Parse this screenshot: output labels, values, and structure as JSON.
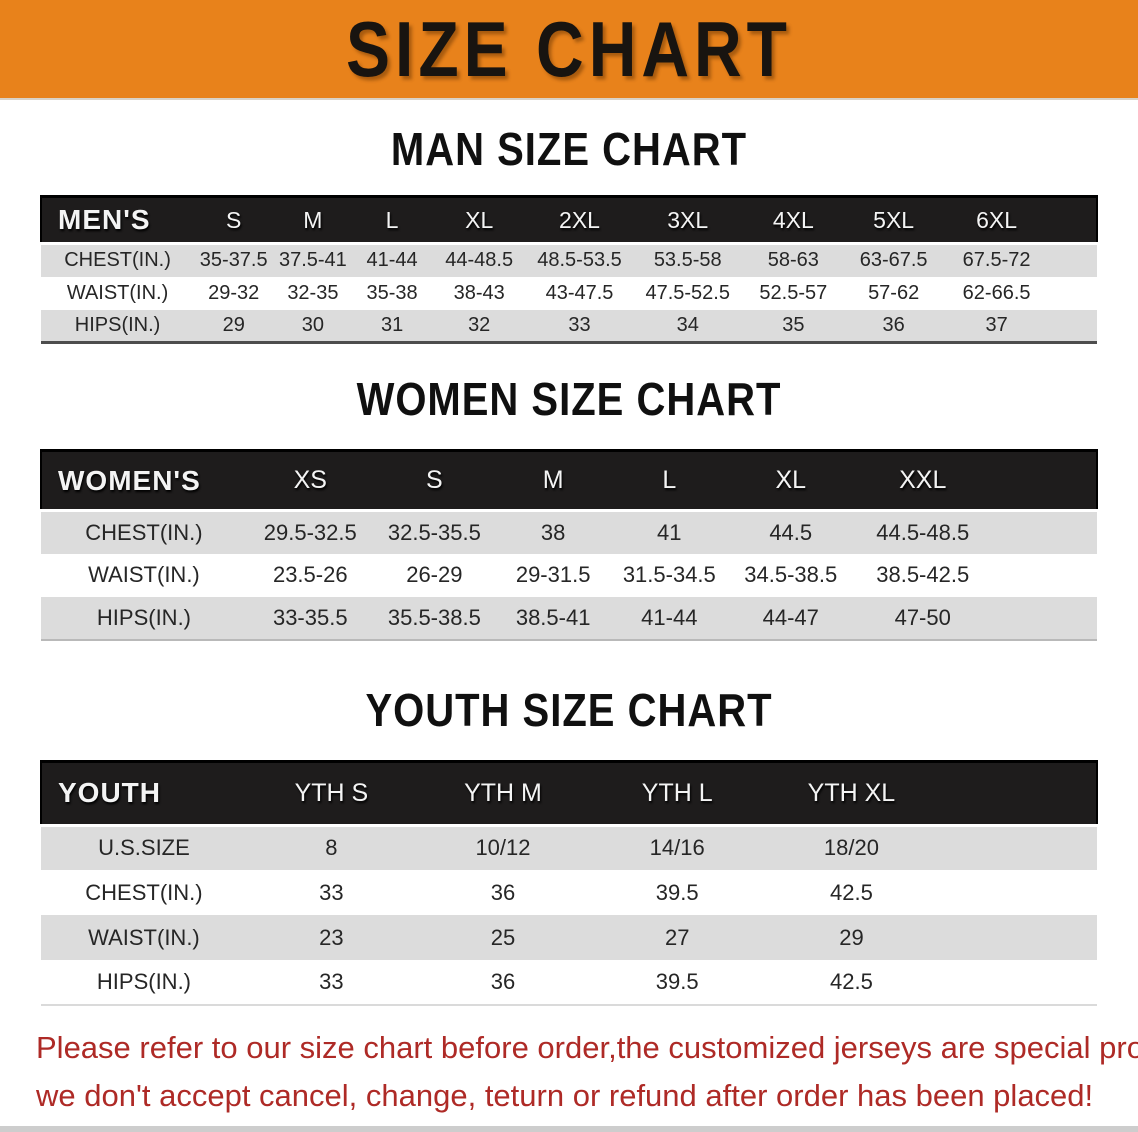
{
  "theme": {
    "orange": "#E8821B",
    "header-bg": "#1E1C1C",
    "stripe": "#DCDCDC",
    "red": "#AE2A26"
  },
  "banner": {
    "title": "SIZE CHART"
  },
  "sections": [
    {
      "heading": "MAN SIZE CHART",
      "table": {
        "header_label": "MEN'S",
        "columns": [
          "S",
          "M",
          "L",
          "XL",
          "2XL",
          "3XL",
          "4XL",
          "5XL",
          "6XL"
        ],
        "rows": [
          {
            "label": "CHEST(IN.)",
            "values": [
              "35-37.5",
              "37.5-41",
              "41-44",
              "44-48.5",
              "48.5-53.5",
              "53.5-58",
              "58-63",
              "63-67.5",
              "67.5-72"
            ]
          },
          {
            "label": "WAIST(IN.)",
            "values": [
              "29-32",
              "32-35",
              "35-38",
              "38-43",
              "43-47.5",
              "47.5-52.5",
              "52.5-57",
              "57-62",
              "62-66.5"
            ]
          },
          {
            "label": "HIPS(IN.)",
            "values": [
              "29",
              "30",
              "31",
              "32",
              "33",
              "34",
              "35",
              "36",
              "37"
            ]
          }
        ]
      }
    },
    {
      "heading": "WOMEN SIZE CHART",
      "table": {
        "header_label": "WOMEN'S",
        "columns": [
          "XS",
          "S",
          "M",
          "L",
          "XL",
          "XXL"
        ],
        "rows": [
          {
            "label": "CHEST(IN.)",
            "values": [
              "29.5-32.5",
              "32.5-35.5",
              "38",
              "41",
              "44.5",
              "44.5-48.5"
            ]
          },
          {
            "label": "WAIST(IN.)",
            "values": [
              "23.5-26",
              "26-29",
              "29-31.5",
              "31.5-34.5",
              "34.5-38.5",
              "38.5-42.5"
            ]
          },
          {
            "label": "HIPS(IN.)",
            "values": [
              "33-35.5",
              "35.5-38.5",
              "38.5-41",
              "41-44",
              "44-47",
              "47-50"
            ]
          }
        ]
      }
    },
    {
      "heading": "YOUTH SIZE CHART",
      "table": {
        "header_label": "YOUTH",
        "columns": [
          "YTH S",
          "YTH M",
          "YTH L",
          "YTH XL"
        ],
        "rows": [
          {
            "label": "U.S.SIZE",
            "values": [
              "8",
              "10/12",
              "14/16",
              "18/20"
            ]
          },
          {
            "label": "CHEST(IN.)",
            "values": [
              "33",
              "36",
              "39.5",
              "42.5"
            ]
          },
          {
            "label": "WAIST(IN.)",
            "values": [
              "23",
              "25",
              "27",
              "29"
            ]
          },
          {
            "label": "HIPS(IN.)",
            "values": [
              "33",
              "36",
              "39.5",
              "42.5"
            ]
          }
        ]
      }
    }
  ],
  "disclaimer": {
    "line1": "Please refer to our size chart before order,the customized jerseys are special products,",
    "line2": "we don't accept cancel, change, teturn or refund after order has been placed!"
  }
}
